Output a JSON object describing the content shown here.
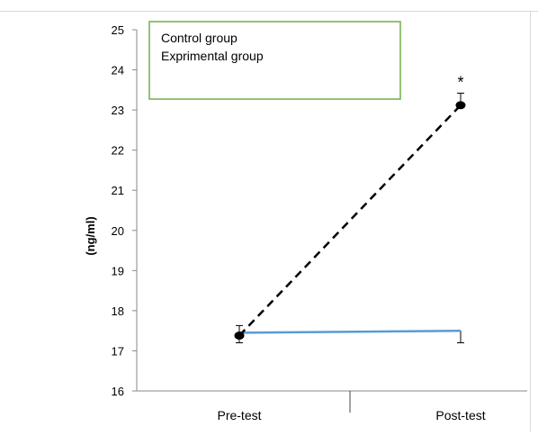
{
  "chart_data": {
    "type": "line",
    "categories": [
      "Pre-test",
      "Post-test"
    ],
    "ylabel": "(ng/ml)",
    "ylim": [
      16,
      25
    ],
    "yticks": [
      16,
      17,
      18,
      19,
      20,
      21,
      22,
      23,
      24,
      25
    ],
    "grid": false,
    "legend_position": "top-left",
    "series": [
      {
        "name": "Control group",
        "values": [
          17.45,
          17.5
        ],
        "error": [
          0.25,
          0.3
        ],
        "color": "#5b9bd5",
        "style": "solid"
      },
      {
        "name": "Exprimental group",
        "values": [
          17.38,
          23.12
        ],
        "error": [
          0.25,
          0.3
        ],
        "color": "#000000",
        "style": "dashed"
      }
    ],
    "annotations": [
      {
        "text": "*",
        "category": "Post-test",
        "series": "Exprimental group"
      }
    ],
    "colors": {
      "legend_border": "#70ad47",
      "frame_border": "#d9d9d9"
    }
  }
}
